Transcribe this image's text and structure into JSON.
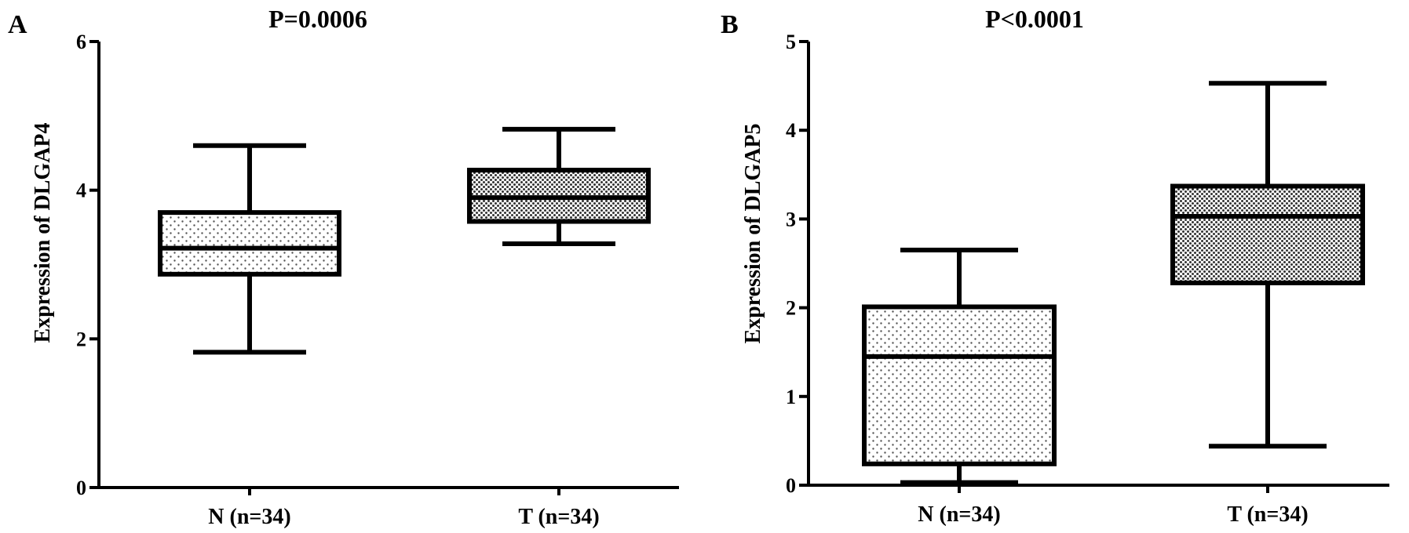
{
  "chart_data": [
    {
      "type": "box",
      "panel_label": "A",
      "title": "P=0.0006",
      "xlabel": "",
      "ylabel": "Expression of DLGAP4",
      "ylim": [
        0,
        6
      ],
      "yticks": [
        0,
        2,
        4,
        6
      ],
      "categories": [
        "N (n=34)",
        "T (n=34)"
      ],
      "boxes": [
        {
          "category": "N (n=34)",
          "min": 1.82,
          "q1": 2.87,
          "median": 3.22,
          "q3": 3.7,
          "max": 4.6,
          "pattern": "sparse-dots"
        },
        {
          "category": "T (n=34)",
          "min": 3.28,
          "q1": 3.58,
          "median": 3.9,
          "q3": 4.27,
          "max": 4.82,
          "pattern": "dense-dots"
        }
      ]
    },
    {
      "type": "box",
      "panel_label": "B",
      "title": "P<0.0001",
      "xlabel": "",
      "ylabel": "Expression of DLGAP5",
      "ylim": [
        0,
        5
      ],
      "yticks": [
        0,
        1,
        2,
        3,
        4,
        5
      ],
      "categories": [
        "N (n=34)",
        "T (n=34)"
      ],
      "boxes": [
        {
          "category": "N (n=34)",
          "min": 0.03,
          "q1": 0.24,
          "median": 1.45,
          "q3": 2.01,
          "max": 2.65,
          "pattern": "sparse-dots"
        },
        {
          "category": "T (n=34)",
          "min": 0.44,
          "q1": 2.28,
          "median": 3.03,
          "q3": 3.37,
          "max": 4.53,
          "pattern": "dense-dots"
        }
      ]
    }
  ]
}
